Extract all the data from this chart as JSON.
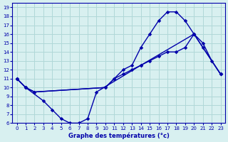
{
  "title": "Graphe des températures (°c)",
  "background_color": "#d8f0f0",
  "grid_color": "#b0d8d8",
  "line_color": "#0000aa",
  "xlim": [
    -0.5,
    23.5
  ],
  "ylim": [
    6,
    19.5
  ],
  "xticks": [
    0,
    1,
    2,
    3,
    4,
    5,
    6,
    7,
    8,
    9,
    10,
    11,
    12,
    13,
    14,
    15,
    16,
    17,
    18,
    19,
    20,
    21,
    22,
    23
  ],
  "yticks": [
    6,
    7,
    8,
    9,
    10,
    11,
    12,
    13,
    14,
    15,
    16,
    17,
    18,
    19
  ],
  "line1_x": [
    0,
    1,
    3,
    4,
    5,
    6,
    7,
    8,
    9,
    14,
    20,
    21,
    23
  ],
  "line1_y": [
    11,
    10,
    8.5,
    7.5,
    6.5,
    6.0,
    6.0,
    6.5,
    9.5,
    12.5,
    16,
    14.5,
    11.5
  ],
  "line2_x": [
    0,
    1,
    2,
    10,
    11,
    12,
    13,
    14,
    15,
    16,
    17,
    18,
    19,
    20,
    21,
    22,
    23
  ],
  "line2_y": [
    11,
    10,
    9.5,
    10,
    11,
    12,
    12.5,
    14.5,
    16,
    17.5,
    18.5,
    18.5,
    17.5,
    16,
    15,
    13,
    11.5
  ],
  "line3_x": [
    0,
    1,
    2,
    10,
    11,
    12,
    13,
    14,
    15,
    16,
    17,
    18,
    19,
    20,
    23
  ],
  "line3_y": [
    11,
    10,
    9.5,
    10,
    11,
    11.5,
    12,
    12.5,
    13,
    13.5,
    14,
    14,
    14.5,
    16,
    11.5
  ]
}
